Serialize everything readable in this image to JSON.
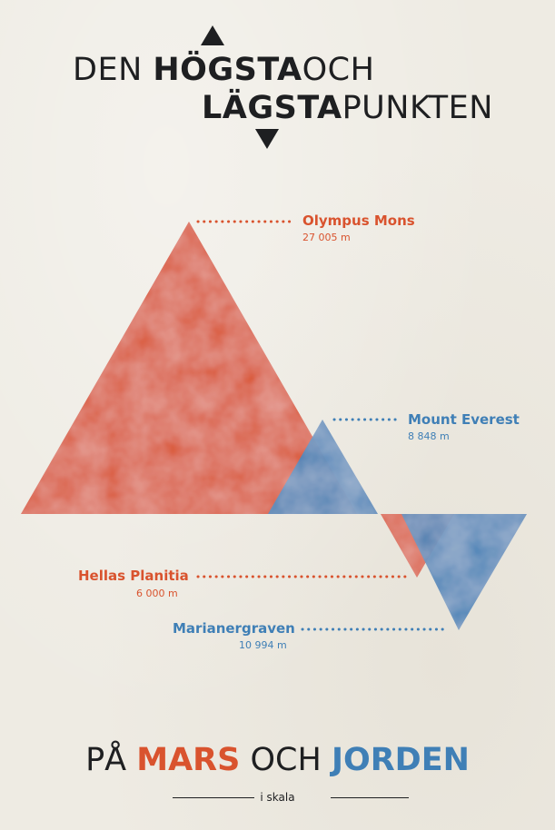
{
  "title": {
    "line1_light_a": "DEN",
    "line1_bold": "HÖGSTA",
    "line1_light_b": "OCH",
    "line2_bold": "LÄGSTA",
    "line2_light": "PUNKTEN"
  },
  "points": {
    "olympus": {
      "name": "Olympus Mons",
      "value": "27 005 m"
    },
    "everest": {
      "name": "Mount Everest",
      "value": "8 848 m"
    },
    "hellas": {
      "name": "Hellas Planitia",
      "value": "6 000 m"
    },
    "mariana": {
      "name": "Marianergraven",
      "value": "10 994 m"
    }
  },
  "bottom": {
    "pa": "PÅ",
    "mars": "MARS",
    "och": "OCH",
    "jorden": "JORDEN",
    "scale": "i skala"
  },
  "colors": {
    "mars": "#d9532e",
    "earth": "#3f7fb6",
    "ink": "#1e1f21",
    "background": "#eeebe3"
  }
}
